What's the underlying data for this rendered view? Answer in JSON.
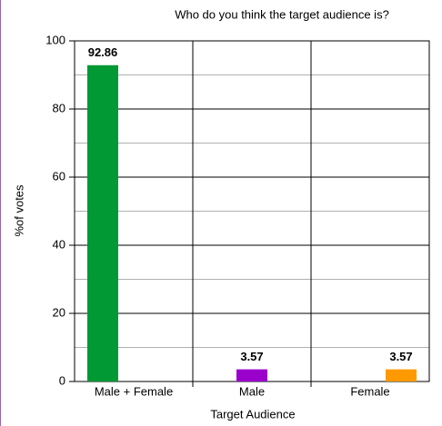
{
  "chart_data": {
    "type": "bar",
    "title": "Who do you think the target audience is?",
    "x_label": "Target Audience",
    "y_label": "%of votes",
    "categories": [
      "Male + Female",
      "Male",
      "Female"
    ],
    "values": [
      92.86,
      3.57,
      3.57
    ],
    "colors": [
      "#009933",
      "#9900cc",
      "#ff9900"
    ],
    "ylim": [
      0,
      100
    ],
    "yticks": [
      0,
      20,
      40,
      60,
      80,
      100
    ],
    "yminor": [
      10,
      30,
      50,
      70,
      90
    ],
    "grid": true
  }
}
